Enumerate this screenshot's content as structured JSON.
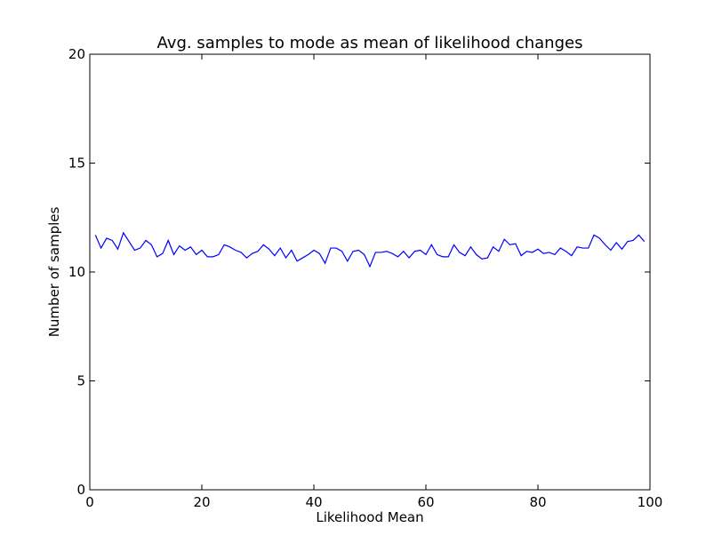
{
  "chart_data": {
    "type": "line",
    "title": "Avg. samples to mode as mean of likelihood changes",
    "xlabel": "Likelihood Mean",
    "ylabel": "Number of samples",
    "xlim": [
      0,
      100
    ],
    "ylim": [
      0,
      20
    ],
    "xticks": [
      0,
      20,
      40,
      60,
      80,
      100
    ],
    "yticks": [
      0,
      5,
      10,
      15,
      20
    ],
    "xtick_labels": [
      "0",
      "20",
      "40",
      "60",
      "80",
      "100"
    ],
    "ytick_labels": [
      "0",
      "5",
      "10",
      "15",
      "20"
    ],
    "grid": false,
    "legend": false,
    "series": [
      {
        "color": "#0000ff",
        "x": [
          1,
          2,
          3,
          4,
          5,
          6,
          7,
          8,
          9,
          10,
          11,
          12,
          13,
          14,
          15,
          16,
          17,
          18,
          19,
          20,
          21,
          22,
          23,
          24,
          25,
          26,
          27,
          28,
          29,
          30,
          31,
          32,
          33,
          34,
          35,
          36,
          37,
          38,
          39,
          40,
          41,
          42,
          43,
          44,
          45,
          46,
          47,
          48,
          49,
          50,
          51,
          52,
          53,
          54,
          55,
          56,
          57,
          58,
          59,
          60,
          61,
          62,
          63,
          64,
          65,
          66,
          67,
          68,
          69,
          70,
          71,
          72,
          73,
          74,
          75,
          76,
          77,
          78,
          79,
          80,
          81,
          82,
          83,
          84,
          85,
          86,
          87,
          88,
          89,
          90,
          91,
          92,
          93,
          94,
          95,
          96,
          97,
          98,
          99
        ],
        "values": [
          11.7,
          11.1,
          11.55,
          11.45,
          11.05,
          11.8,
          11.4,
          11.0,
          11.1,
          11.45,
          11.25,
          10.7,
          10.85,
          11.45,
          10.8,
          11.2,
          11.0,
          11.15,
          10.8,
          11.0,
          10.7,
          10.7,
          10.8,
          11.25,
          11.15,
          11.0,
          10.9,
          10.65,
          10.85,
          10.95,
          11.25,
          11.05,
          10.75,
          11.1,
          10.65,
          11.0,
          10.5,
          10.65,
          10.8,
          11.0,
          10.85,
          10.4,
          11.1,
          11.1,
          10.95,
          10.5,
          10.95,
          11.0,
          10.8,
          10.25,
          10.9,
          10.9,
          10.95,
          10.85,
          10.7,
          10.95,
          10.65,
          10.95,
          11.0,
          10.8,
          11.25,
          10.8,
          10.7,
          10.7,
          11.25,
          10.9,
          10.75,
          11.15,
          10.8,
          10.6,
          10.65,
          11.15,
          10.95,
          11.5,
          11.25,
          11.3,
          10.75,
          10.95,
          10.9,
          11.05,
          10.85,
          10.9,
          10.8,
          11.1,
          10.95,
          10.75,
          11.15,
          11.1,
          11.1,
          11.7,
          11.55,
          11.25,
          11.0,
          11.35,
          11.05,
          11.4,
          11.45,
          11.7,
          11.4
        ]
      }
    ]
  }
}
